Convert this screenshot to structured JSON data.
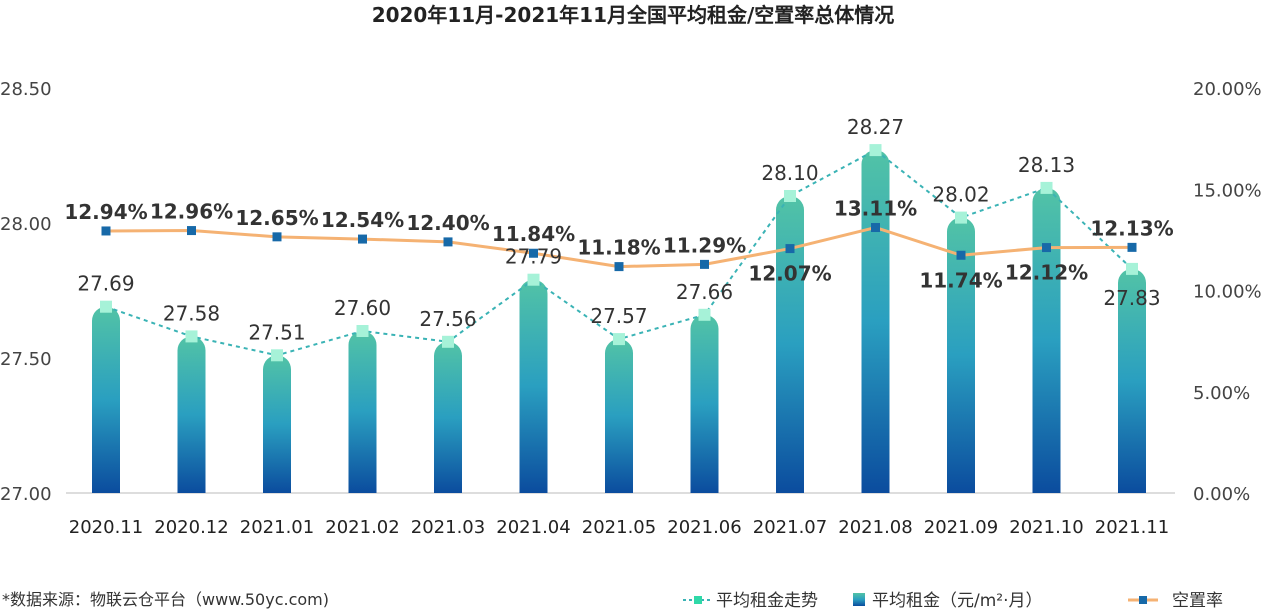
{
  "chart_data": {
    "type": "bar+line",
    "title": "2020年11月-2021年11月全国平均租金/空置率总体情况",
    "categories": [
      "2020.11",
      "2020.12",
      "2021.01",
      "2021.02",
      "2021.03",
      "2021.04",
      "2021.05",
      "2021.06",
      "2021.07",
      "2021.08",
      "2021.09",
      "2021.10",
      "2021.11"
    ],
    "series": [
      {
        "name": "平均租金（元/m²·月）",
        "type": "bar",
        "axis": "left",
        "values": [
          27.69,
          27.58,
          27.51,
          27.6,
          27.56,
          27.79,
          27.57,
          27.66,
          28.1,
          28.27,
          28.02,
          28.13,
          27.83
        ],
        "labels": [
          "27.69",
          "27.58",
          "27.51",
          "27.60",
          "27.56",
          "27.79",
          "27.57",
          "27.66",
          "28.10",
          "28.27",
          "28.02",
          "28.13",
          "27.83"
        ]
      },
      {
        "name": "平均租金走势",
        "type": "line",
        "style": "dotted",
        "axis": "left",
        "values": [
          27.69,
          27.58,
          27.51,
          27.6,
          27.56,
          27.79,
          27.57,
          27.66,
          28.1,
          28.27,
          28.02,
          28.13,
          27.83
        ]
      },
      {
        "name": "空置率",
        "type": "line",
        "axis": "right",
        "values": [
          12.94,
          12.96,
          12.65,
          12.54,
          12.4,
          11.84,
          11.18,
          11.29,
          12.07,
          13.11,
          11.74,
          12.12,
          12.13
        ],
        "labels": [
          "12.94%",
          "12.96%",
          "12.65%",
          "12.54%",
          "12.40%",
          "11.84%",
          "11.18%",
          "11.29%",
          "12.07%",
          "13.11%",
          "11.74%",
          "12.12%",
          "12.13%"
        ]
      }
    ],
    "left_axis": {
      "ylim": [
        27.0,
        28.5
      ],
      "ticks": [
        "27.00",
        "27.50",
        "28.00",
        "28.50"
      ]
    },
    "right_axis": {
      "ylim": [
        0,
        20
      ],
      "ticks": [
        "0.00%",
        "5.00%",
        "10.00%",
        "15.00%",
        "20.00%"
      ]
    },
    "grid": false,
    "legend": {
      "placement": "bottom-right",
      "items": [
        "平均租金走势",
        "平均租金（元/m²·月）",
        "空置率"
      ]
    },
    "colors": {
      "bar_top": "#52c3a6",
      "bar_bottom": "#0b4c9e",
      "trend": "#3ab3b5",
      "trend_marker": "#a6f2d8",
      "vacancy": "#f5b273",
      "vacancy_marker": "#1769a8"
    }
  },
  "source": "*数据来源：物联云仓平台（www.50yc.com)"
}
